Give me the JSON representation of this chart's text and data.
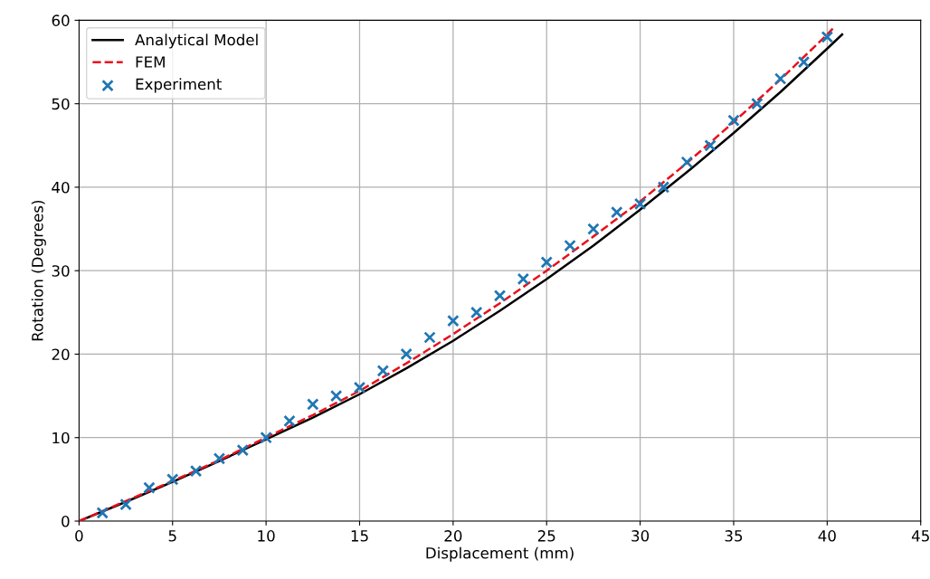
{
  "chart_data": {
    "type": "line",
    "xlabel": "Displacement (mm)",
    "ylabel": "Rotation (Degrees)",
    "xlim": [
      0,
      45
    ],
    "ylim": [
      0,
      60
    ],
    "xticks": [
      0,
      5,
      10,
      15,
      20,
      25,
      30,
      35,
      40,
      45
    ],
    "yticks": [
      0,
      10,
      20,
      30,
      40,
      50,
      60
    ],
    "grid": true,
    "legend": "top left",
    "series": [
      {
        "name": "Analytical Model",
        "color": "#000000",
        "line_style": "solid",
        "marker": "none",
        "x": [
          0,
          2.5,
          5,
          7.5,
          10,
          12.5,
          15,
          17.5,
          20,
          22.5,
          25,
          27.5,
          30,
          32.5,
          35,
          37.5,
          40,
          40.8
        ],
        "values": [
          0,
          2.3,
          4.7,
          7.2,
          9.8,
          12.4,
          15.2,
          18.3,
          21.6,
          25.2,
          29,
          33,
          37.3,
          41.8,
          46.5,
          51.4,
          56.6,
          58.3
        ]
      },
      {
        "name": "FEM",
        "color": "#e8111c",
        "line_style": "dashed",
        "marker": "none",
        "x": [
          0,
          2.5,
          5,
          7.5,
          10,
          12.5,
          15,
          17.5,
          20,
          22.5,
          25,
          27.5,
          30,
          32.5,
          35,
          37.5,
          40,
          40.3
        ],
        "values": [
          0,
          2.4,
          4.8,
          7.3,
          10,
          12.7,
          15.6,
          18.9,
          22.4,
          26.1,
          30,
          34.1,
          38.3,
          42.9,
          47.8,
          52.9,
          58.3,
          59
        ]
      },
      {
        "name": "Experiment",
        "type": "scatter",
        "color": "#1f77b4",
        "marker": "cross",
        "x": [
          1.25,
          2.5,
          3.75,
          5,
          6.25,
          7.5,
          8.75,
          10,
          11.25,
          12.5,
          13.75,
          15,
          16.25,
          17.5,
          18.75,
          20,
          21.25,
          22.5,
          23.75,
          25,
          26.25,
          27.5,
          28.75,
          30,
          31.25,
          32.5,
          33.75,
          35,
          36.25,
          37.5,
          38.75,
          40
        ],
        "values": [
          1,
          2,
          4,
          5,
          6,
          7.5,
          8.5,
          10,
          12,
          14,
          15,
          16,
          18,
          20,
          22,
          24,
          25,
          27,
          29,
          31,
          33,
          35,
          37,
          38,
          40,
          43,
          45,
          48,
          50,
          53,
          55,
          58
        ]
      }
    ]
  }
}
